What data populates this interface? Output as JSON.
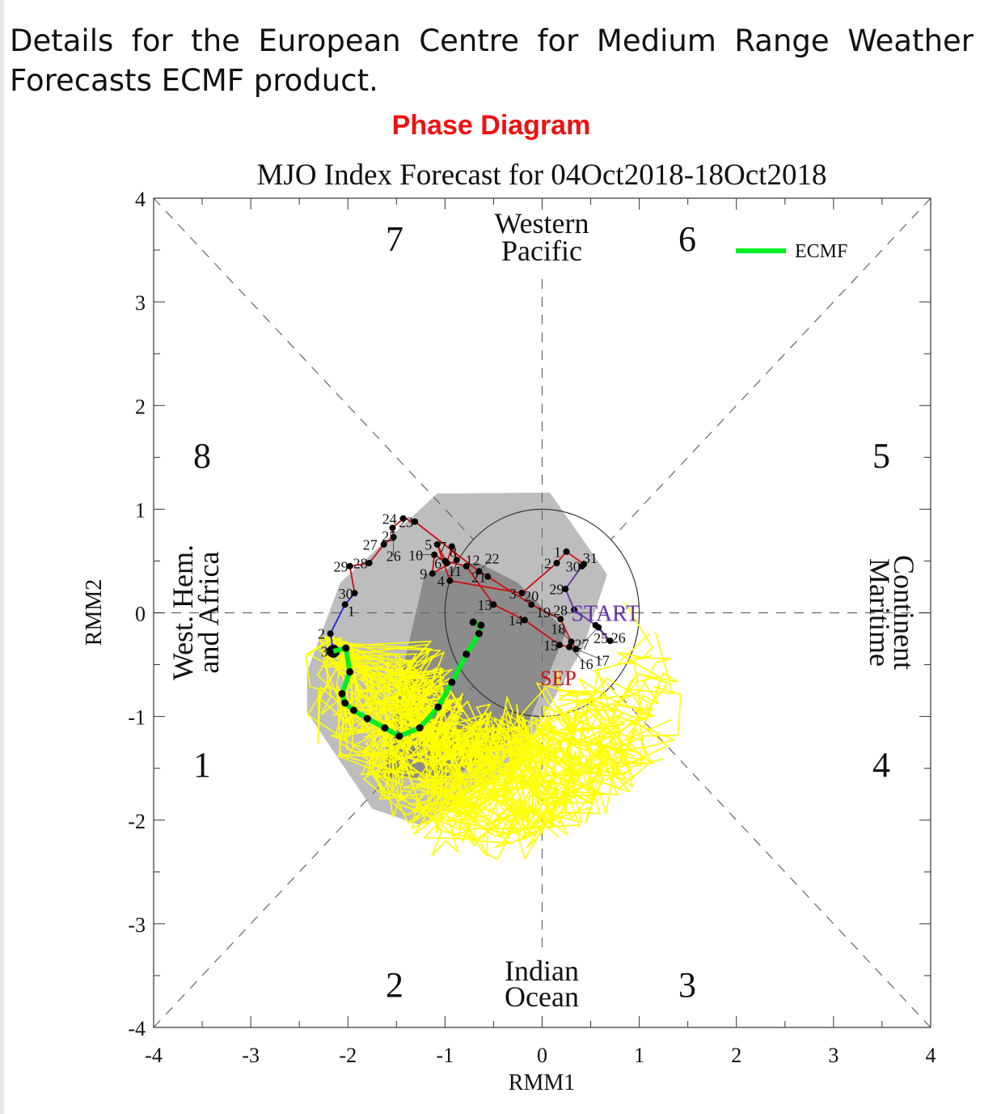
{
  "intro_text": "Details for the European Centre for Medium Range Weather Forecasts ECMF product.",
  "section_title": "Phase Diagram",
  "colors": {
    "section_title": "#ee1111",
    "forecast": "#00ee22",
    "ensemble": "#ffff00",
    "observed_aug": "#6633aa",
    "observed_sep": "#cc1111",
    "observed_oct": "#2222ee",
    "spread_light": "#bdbdbd",
    "spread_dark": "#8c8c8c"
  },
  "chart_data": {
    "type": "line",
    "title": "MJO Index Forecast for 04Oct2018-18Oct2018",
    "xlabel": "RMM1",
    "ylabel": "RMM2",
    "xlim": [
      -4,
      4
    ],
    "ylim": [
      -4,
      4
    ],
    "x_ticks": [
      "-4",
      "-3",
      "-2",
      "-1",
      "0",
      "1",
      "2",
      "3",
      "4"
    ],
    "y_ticks": [
      "4",
      "3",
      "2",
      "1",
      "0",
      "-1",
      "-2",
      "-3",
      "-4"
    ],
    "grid": false,
    "legend": {
      "position": "top-right",
      "entries": [
        "ECMF"
      ]
    },
    "phases": [
      "1",
      "2",
      "3",
      "4",
      "5",
      "6",
      "7",
      "8"
    ],
    "regions": {
      "top": [
        "Western",
        "Pacific"
      ],
      "bottom": [
        "Indian",
        "Ocean"
      ],
      "left": [
        "West. Hem.",
        "and Africa"
      ],
      "right": [
        "Maritime",
        "Continent"
      ]
    },
    "annotations": {
      "start": "START",
      "month": "SEP"
    },
    "observed": {
      "aug": [
        {
          "d": "25",
          "x": 0.55,
          "y": -0.12
        },
        {
          "d": "26",
          "x": 0.7,
          "y": -0.27
        },
        {
          "d": "27",
          "x": 0.58,
          "y": -0.14
        },
        {
          "d": "28",
          "x": 0.33,
          "y": 0.03
        },
        {
          "d": "29",
          "x": 0.24,
          "y": 0.23
        },
        {
          "d": "30",
          "x": 0.41,
          "y": 0.45
        },
        {
          "d": "31",
          "x": 0.43,
          "y": 0.47
        }
      ],
      "sep": [
        {
          "d": "1",
          "x": 0.25,
          "y": 0.59
        },
        {
          "d": "2",
          "x": 0.15,
          "y": 0.48
        },
        {
          "d": "3",
          "x": -0.21,
          "y": 0.19
        },
        {
          "d": "4",
          "x": -0.95,
          "y": 0.31
        },
        {
          "d": "5",
          "x": -1.08,
          "y": 0.66
        },
        {
          "d": "6",
          "x": -0.98,
          "y": 0.48
        },
        {
          "d": "7",
          "x": -0.93,
          "y": 0.64
        },
        {
          "d": "8",
          "x": -0.88,
          "y": 0.51
        },
        {
          "d": "9",
          "x": -1.13,
          "y": 0.38
        },
        {
          "d": "10",
          "x": -1.11,
          "y": 0.56
        },
        {
          "d": "11",
          "x": -1.0,
          "y": 0.5
        },
        {
          "d": "12",
          "x": -0.78,
          "y": 0.45
        },
        {
          "d": "13",
          "x": -0.5,
          "y": 0.08
        },
        {
          "d": "14",
          "x": -0.18,
          "y": -0.07
        },
        {
          "d": "15",
          "x": 0.18,
          "y": -0.31
        },
        {
          "d": "16",
          "x": 0.28,
          "y": -0.33
        },
        {
          "d": "17",
          "x": 0.35,
          "y": -0.35
        },
        {
          "d": "18",
          "x": 0.3,
          "y": -0.28
        },
        {
          "d": "19",
          "x": 0.19,
          "y": -0.06
        },
        {
          "d": "20",
          "x": -0.11,
          "y": 0.08
        },
        {
          "d": "21",
          "x": -0.56,
          "y": 0.35
        },
        {
          "d": "22",
          "x": -0.65,
          "y": 0.4
        },
        {
          "d": "23",
          "x": -1.31,
          "y": 0.88
        },
        {
          "d": "24",
          "x": -1.43,
          "y": 0.91
        },
        {
          "d": "25",
          "x": -1.54,
          "y": 0.82
        },
        {
          "d": "26",
          "x": -1.53,
          "y": 0.73
        },
        {
          "d": "27",
          "x": -1.63,
          "y": 0.66
        },
        {
          "d": "28",
          "x": -1.78,
          "y": 0.48
        },
        {
          "d": "29",
          "x": -1.98,
          "y": 0.45
        },
        {
          "d": "30",
          "x": -1.93,
          "y": 0.19
        }
      ],
      "oct": [
        {
          "d": "1",
          "x": -2.03,
          "y": 0.08
        },
        {
          "d": "2",
          "x": -2.18,
          "y": -0.2
        },
        {
          "d": "3",
          "x": -2.15,
          "y": -0.37
        }
      ]
    },
    "forecast": {
      "name": "ECMF",
      "points": [
        [
          -2.15,
          -0.37
        ],
        [
          -2.02,
          -0.34
        ],
        [
          -1.98,
          -0.57
        ],
        [
          -2.06,
          -0.78
        ],
        [
          -2.03,
          -0.87
        ],
        [
          -1.94,
          -0.94
        ],
        [
          -1.8,
          -1.02
        ],
        [
          -1.62,
          -1.11
        ],
        [
          -1.47,
          -1.19
        ],
        [
          -1.26,
          -1.11
        ],
        [
          -1.07,
          -0.91
        ],
        [
          -0.93,
          -0.67
        ],
        [
          -0.78,
          -0.4
        ],
        [
          -0.65,
          -0.2
        ],
        [
          -0.63,
          -0.12
        ],
        [
          -0.71,
          -0.09
        ]
      ]
    },
    "spread_outer": [
      [
        -1.08,
        1.15
      ],
      [
        0.08,
        1.16
      ],
      [
        0.67,
        0.37
      ],
      [
        0.42,
        -0.34
      ],
      [
        -0.25,
        -1.43
      ],
      [
        -1.25,
        -2.05
      ],
      [
        -1.75,
        -1.89
      ],
      [
        -2.42,
        -0.96
      ],
      [
        -2.42,
        -0.57
      ],
      [
        -2.08,
        0.29
      ]
    ],
    "spread_inner": [
      [
        -0.67,
        0.49
      ],
      [
        -0.25,
        0.29
      ],
      [
        0.25,
        -0.18
      ],
      [
        -0.17,
        -1.12
      ],
      [
        -0.92,
        -1.59
      ],
      [
        -1.67,
        -1.59
      ],
      [
        -1.42,
        -0.49
      ],
      [
        -1.21,
        0.37
      ]
    ],
    "unit_circle_radius": 1
  }
}
